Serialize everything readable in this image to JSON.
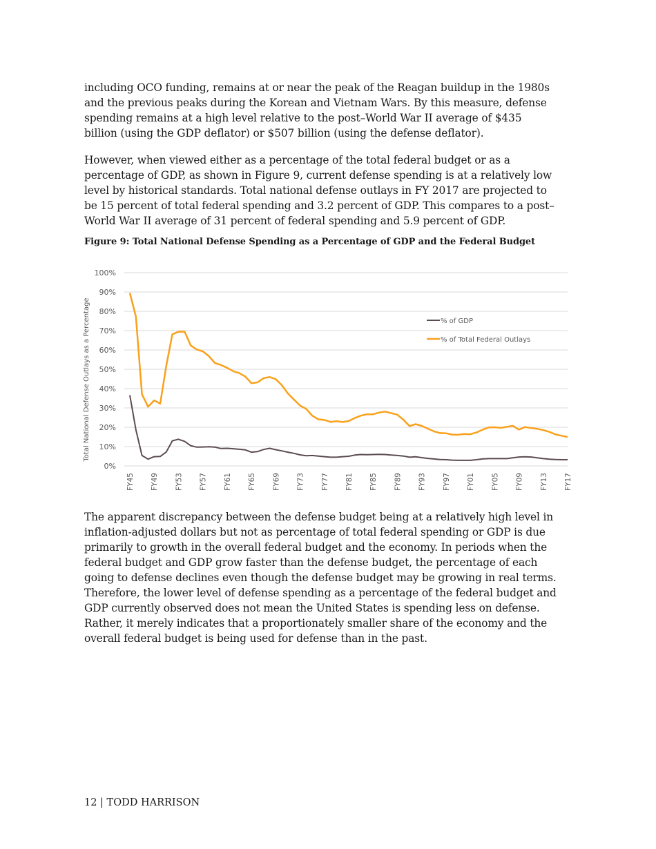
{
  "paragraphs": [
    [
      "including OCO funding, remains at or near the peak of the Reagan buildup in the 1980s",
      "and the previous peaks during the Korean and Vietnam Wars. By this measure, defense",
      "spending remains at a high level relative to the post–World War II average of $435",
      "billion (using the GDP deflator) or $507 billion (using the defense deflator)."
    ],
    [
      "However, when viewed either as a percentage of the total federal budget or as a",
      "percentage of GDP, as shown in Figure 9, current defense spending is at a relatively low",
      "level by historical standards. Total national defense outlays in FY 2017 are projected to",
      "be 15 percent of total federal spending and 3.2 percent of GDP. This compares to a post–",
      "World War II average of 31 percent of federal spending and 5.9 percent of GDP."
    ],
    [
      "The apparent discrepancy between the defense budget being at a relatively high level in",
      "inflation-adjusted dollars but not as percentage of total federal spending or GDP is due",
      "primarily to growth in the overall federal budget and the economy. In periods when the",
      "federal budget and GDP grow faster than the defense budget, the percentage of each",
      "going to defense declines even though the defense budget may be growing in real terms.",
      "Therefore, the lower level of defense spending as a percentage of the federal budget and",
      "GDP currently observed does not mean the United States is spending less on defense.",
      "Rather, it merely indicates that a proportionately smaller share of the economy and the",
      "overall federal budget is being used for defense than in the past."
    ]
  ],
  "figure_caption": "Figure 9: Total National Defense Spending as a Percentage of GDP and the Federal Budget",
  "chart_data": {
    "type": "line",
    "title": "",
    "xlabel": "",
    "ylabel": "Total National Defense Outlays as a Percentage",
    "ylim": [
      0,
      100
    ],
    "yticks": [
      "0%",
      "10%",
      "20%",
      "30%",
      "40%",
      "50%",
      "60%",
      "70%",
      "80%",
      "90%",
      "100%"
    ],
    "grid": true,
    "legend_placement": "top-right",
    "x": [
      "FY45",
      "FY46",
      "FY47",
      "FY48",
      "FY49",
      "FY50",
      "FY51",
      "FY52",
      "FY53",
      "FY54",
      "FY55",
      "FY56",
      "FY57",
      "FY58",
      "FY59",
      "FY60",
      "FY61",
      "FY62",
      "FY63",
      "FY64",
      "FY65",
      "FY66",
      "FY67",
      "FY68",
      "FY69",
      "FY70",
      "FY71",
      "FY72",
      "FY73",
      "FY74",
      "FY75",
      "FY76",
      "FY77",
      "FY78",
      "FY79",
      "FY80",
      "FY81",
      "FY82",
      "FY83",
      "FY84",
      "FY85",
      "FY86",
      "FY87",
      "FY88",
      "FY89",
      "FY90",
      "FY91",
      "FY92",
      "FY93",
      "FY94",
      "FY95",
      "FY96",
      "FY97",
      "FY98",
      "FY99",
      "FY00",
      "FY01",
      "FY02",
      "FY03",
      "FY04",
      "FY05",
      "FY06",
      "FY07",
      "FY08",
      "FY09",
      "FY10",
      "FY11",
      "FY12",
      "FY13",
      "FY14",
      "FY15",
      "FY16",
      "FY17"
    ],
    "xticks": [
      "FY45",
      "FY49",
      "FY53",
      "FY57",
      "FY61",
      "FY65",
      "FY69",
      "FY73",
      "FY77",
      "FY81",
      "FY85",
      "FY89",
      "FY93",
      "FY97",
      "FY01",
      "FY05",
      "FY09",
      "FY13",
      "FY17"
    ],
    "series": [
      {
        "name": "% of GDP",
        "color": "#5b4b53",
        "values": [
          36.6,
          18.7,
          5.4,
          3.5,
          4.8,
          4.9,
          7.2,
          13.0,
          13.8,
          12.7,
          10.5,
          9.7,
          9.8,
          9.9,
          9.7,
          9.0,
          9.1,
          8.9,
          8.6,
          8.3,
          7.1,
          7.4,
          8.5,
          9.1,
          8.4,
          7.8,
          7.1,
          6.5,
          5.7,
          5.3,
          5.4,
          5.1,
          4.8,
          4.5,
          4.5,
          4.8,
          5.0,
          5.6,
          5.9,
          5.8,
          5.9,
          6.0,
          5.9,
          5.6,
          5.4,
          5.1,
          4.5,
          4.7,
          4.3,
          3.9,
          3.6,
          3.3,
          3.2,
          3.0,
          2.9,
          2.9,
          2.9,
          3.2,
          3.6,
          3.8,
          3.8,
          3.8,
          3.8,
          4.2,
          4.6,
          4.7,
          4.6,
          4.2,
          3.8,
          3.5,
          3.3,
          3.2,
          3.2
        ]
      },
      {
        "name": "% of Total Federal Outlays",
        "color": "#f9a11b",
        "values": [
          89.5,
          77.3,
          37.1,
          30.6,
          33.9,
          32.2,
          51.8,
          68.1,
          69.4,
          69.5,
          62.4,
          60.2,
          59.3,
          56.8,
          53.2,
          52.2,
          50.8,
          49.0,
          48.0,
          46.2,
          42.8,
          43.2,
          45.4,
          46.0,
          44.9,
          41.8,
          37.5,
          34.3,
          31.2,
          29.5,
          26.0,
          24.1,
          23.8,
          22.8,
          23.1,
          22.7,
          23.2,
          24.8,
          26.0,
          26.7,
          26.7,
          27.6,
          28.1,
          27.3,
          26.5,
          23.9,
          20.6,
          21.6,
          20.7,
          19.3,
          17.9,
          17.0,
          16.9,
          16.2,
          16.1,
          16.5,
          16.4,
          17.3,
          18.7,
          19.9,
          20.0,
          19.7,
          20.2,
          20.7,
          18.8,
          20.1,
          19.6,
          19.2,
          18.5,
          17.6,
          16.3,
          15.6,
          15.0
        ]
      }
    ]
  },
  "footer": "12 | TODD HARRISON"
}
